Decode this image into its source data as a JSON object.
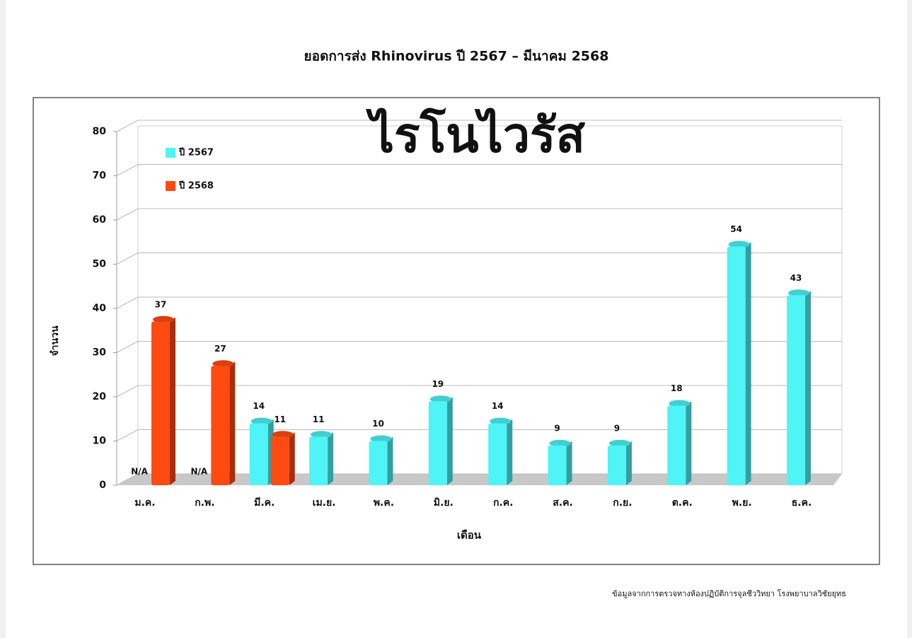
{
  "chart_data": {
    "type": "bar",
    "title": "ยอดการส่ง Rhinovirus ปี 2567 – มีนาคม 2568",
    "annotation": "ไรโนไวรัส",
    "y_label": "จำนวน",
    "x_label": "เดือน",
    "source": "ข้อมูลจากการตรวจทางห้องปฏิบัติการจุลชีววิทยา โรงพยาบาลวิชัยยุทธ",
    "categories": [
      "ม.ค.",
      "ก.พ.",
      "มี.ค.",
      "เม.ย.",
      "พ.ค.",
      "มิ.ย.",
      "ก.ค.",
      "ส.ค.",
      "ก.ย.",
      "ต.ค.",
      "พ.ย.",
      "ธ.ค."
    ],
    "series": [
      {
        "name": "ปี 2567",
        "color": "#4ef4f6",
        "values": [
          null,
          null,
          14,
          11,
          10,
          19,
          14,
          9,
          9,
          18,
          54,
          43
        ],
        "value_labels": [
          "N/A",
          "N/A",
          "14",
          "11",
          "10",
          "19",
          "14",
          "9",
          "9",
          "18",
          "54",
          "43"
        ]
      },
      {
        "name": "ปี 2568",
        "color": "#ff4a12",
        "values": [
          37,
          27,
          11,
          null,
          null,
          null,
          null,
          null,
          null,
          null,
          null,
          null
        ]
      }
    ],
    "ylim": [
      0,
      80
    ],
    "yticks": [
      0,
      10,
      20,
      30,
      40,
      50,
      60,
      70,
      80
    ],
    "grid": true,
    "legend": "top-left"
  }
}
